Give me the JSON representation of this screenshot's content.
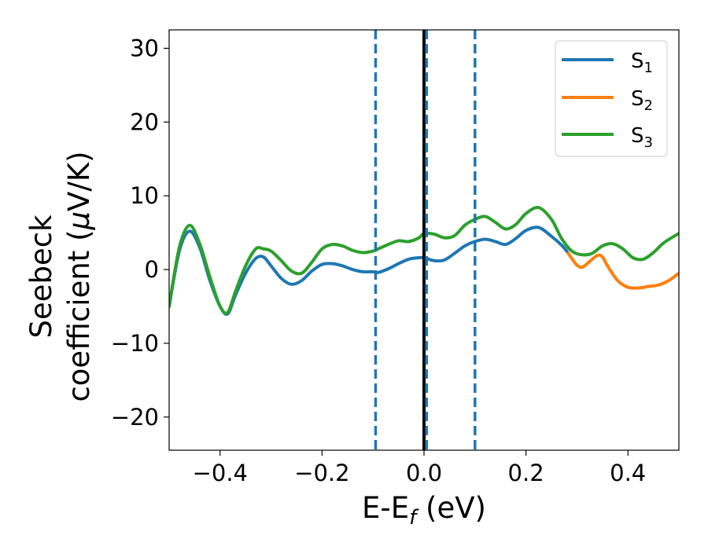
{
  "chart_data": {
    "type": "line",
    "title": "",
    "xlabel": {
      "main": "E-E",
      "sub": "f",
      "tail": " (eV)"
    },
    "ylabel": {
      "line1": "Seebeck",
      "line2_prefix": "coefficient  (",
      "line2_mu": "μ",
      "line2_suffix": "V/K)"
    },
    "xlim": [
      -0.5,
      0.5
    ],
    "ylim": [
      -24.5,
      32.5
    ],
    "x_ticks": [
      -0.4,
      -0.2,
      0.0,
      0.2,
      0.4
    ],
    "x_tick_labels": [
      "−0.4",
      "−0.2",
      "0.0",
      "0.2",
      "0.4"
    ],
    "y_ticks": [
      -20,
      -10,
      0,
      10,
      20,
      30
    ],
    "y_tick_labels": [
      "−20",
      "−10",
      "0",
      "10",
      "20",
      "30"
    ],
    "grid": false,
    "legend_position": "top-right",
    "vertical_lines": [
      {
        "x": 0.0,
        "style": "solid",
        "color": "#000000"
      },
      {
        "x": -0.095,
        "style": "dashed",
        "color": "#1f77b4"
      },
      {
        "x": 0.005,
        "style": "dashed",
        "color": "#1f77b4"
      },
      {
        "x": 0.1,
        "style": "dashed",
        "color": "#1f77b4"
      }
    ],
    "series": [
      {
        "name": "S",
        "sub": "1",
        "color": "#1f77b4",
        "x": [
          -0.5,
          -0.48,
          -0.46,
          -0.44,
          -0.42,
          -0.4,
          -0.385,
          -0.37,
          -0.35,
          -0.33,
          -0.315,
          -0.3,
          -0.28,
          -0.26,
          -0.24,
          -0.22,
          -0.2,
          -0.18,
          -0.16,
          -0.14,
          -0.12,
          -0.1,
          -0.09,
          -0.07,
          -0.05,
          -0.03,
          -0.01,
          0.0,
          0.02,
          0.04,
          0.06,
          0.08,
          0.1,
          0.12,
          0.14,
          0.16,
          0.18,
          0.2,
          0.225,
          0.25,
          0.27,
          0.28
        ],
        "y": [
          -5,
          2.5,
          5.2,
          3,
          -1.5,
          -5,
          -6,
          -3.5,
          -0.5,
          1.5,
          1.7,
          0.5,
          -1.2,
          -2,
          -1.5,
          -0.2,
          0.7,
          0.8,
          0.5,
          0,
          -0.3,
          -0.3,
          -0.4,
          0.1,
          0.8,
          1.4,
          1.6,
          1.6,
          1.2,
          1.3,
          2.2,
          3.2,
          3.8,
          4.1,
          3.8,
          3.4,
          4.2,
          5.3,
          5.7,
          4.5,
          3.3,
          2.5
        ]
      },
      {
        "name": "S",
        "sub": "2",
        "color": "#ff7f0e",
        "x": [
          0.28,
          0.29,
          0.3,
          0.31,
          0.32,
          0.34,
          0.35,
          0.36,
          0.38,
          0.4,
          0.42,
          0.44,
          0.46,
          0.48,
          0.5
        ],
        "y": [
          2.5,
          1.5,
          0.6,
          0.3,
          0.8,
          1.9,
          1.7,
          0.5,
          -1.5,
          -2.4,
          -2.5,
          -2.3,
          -2.1,
          -1.5,
          -0.5
        ]
      },
      {
        "name": "S",
        "sub": "3",
        "color": "#2ca02c",
        "x": [
          -0.5,
          -0.48,
          -0.46,
          -0.44,
          -0.42,
          -0.4,
          -0.385,
          -0.37,
          -0.35,
          -0.33,
          -0.315,
          -0.3,
          -0.28,
          -0.26,
          -0.24,
          -0.22,
          -0.2,
          -0.18,
          -0.16,
          -0.14,
          -0.12,
          -0.1,
          -0.09,
          -0.07,
          -0.05,
          -0.03,
          -0.01,
          0.0,
          0.02,
          0.04,
          0.06,
          0.08,
          0.1,
          0.12,
          0.14,
          0.16,
          0.18,
          0.2,
          0.225,
          0.25,
          0.27,
          0.29,
          0.31,
          0.33,
          0.35,
          0.37,
          0.39,
          0.41,
          0.43,
          0.45,
          0.47,
          0.5
        ],
        "y": [
          -5,
          3,
          6,
          3.5,
          -1,
          -5,
          -5.8,
          -3,
          0.5,
          2.8,
          2.8,
          2.5,
          1.2,
          -0.2,
          -0.5,
          1.0,
          2.8,
          3.4,
          3.2,
          2.6,
          2.3,
          2.5,
          2.8,
          3.4,
          3.9,
          3.8,
          4.3,
          4.9,
          4.8,
          4.3,
          4.6,
          6.0,
          6.8,
          7.2,
          6.4,
          5.5,
          6.1,
          7.6,
          8.4,
          6.8,
          4.2,
          2.5,
          2.0,
          2.2,
          3.2,
          3.5,
          2.8,
          1.6,
          1.4,
          2.3,
          3.6,
          4.9
        ]
      }
    ]
  }
}
